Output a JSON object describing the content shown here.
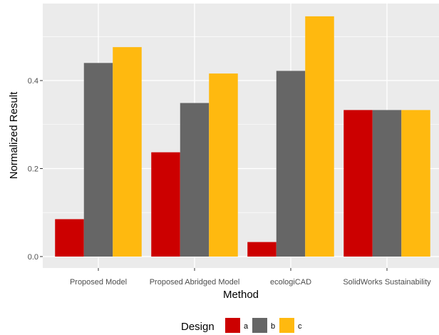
{
  "chart_data": {
    "type": "bar",
    "categories": [
      "Proposed Model",
      "Proposed Abridged Model",
      "ecologiCAD",
      "SolidWorks Sustainability"
    ],
    "series": [
      {
        "name": "a",
        "color": "#CC0000",
        "values": [
          0.085,
          0.237,
          0.033,
          0.333
        ]
      },
      {
        "name": "b",
        "color": "#666666",
        "values": [
          0.44,
          0.349,
          0.422,
          0.333
        ]
      },
      {
        "name": "c",
        "color": "#FFB90F",
        "values": [
          0.476,
          0.416,
          0.546,
          0.333
        ]
      }
    ],
    "xlabel": "Method",
    "ylabel": "Normalized Result",
    "ylim": [
      -0.026,
      0.575
    ],
    "yticks": [
      0.0,
      0.2,
      0.4
    ],
    "ytick_labels": [
      "0.0",
      "0.2",
      "0.4"
    ],
    "grid": true,
    "legend": {
      "title": "Design",
      "position": "bottom"
    },
    "panel_color": "#EBEBEB",
    "grid_color": "#FFFFFF"
  }
}
